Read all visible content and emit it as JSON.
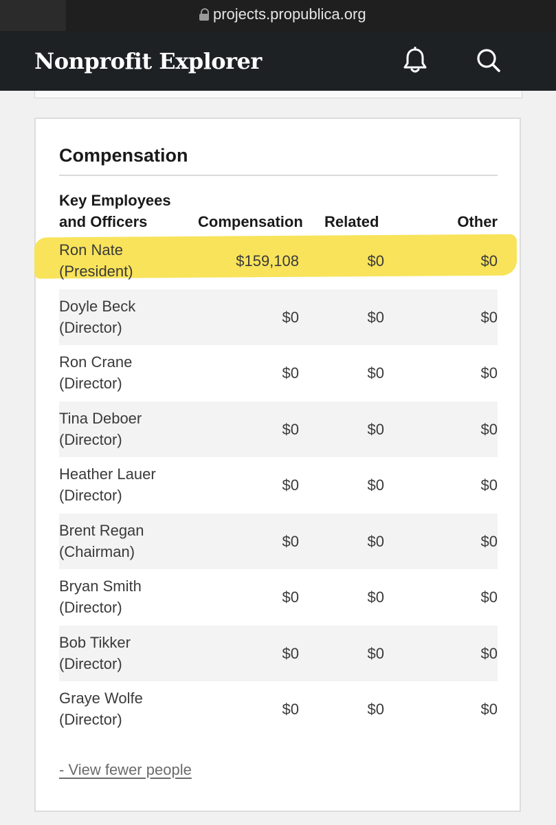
{
  "browser": {
    "url": "projects.propublica.org"
  },
  "header": {
    "title": "Nonprofit Explorer"
  },
  "compensation": {
    "title": "Compensation",
    "columns": {
      "name_line1": "Key Employees",
      "name_line2": "and Officers",
      "compensation": "Compensation",
      "related": "Related",
      "other": "Other"
    },
    "rows": [
      {
        "name": "Ron Nate",
        "role": "(President)",
        "compensation": "$159,108",
        "related": "$0",
        "other": "$0"
      },
      {
        "name": "Doyle Beck",
        "role": "(Director)",
        "compensation": "$0",
        "related": "$0",
        "other": "$0"
      },
      {
        "name": "Ron Crane",
        "role": "(Director)",
        "compensation": "$0",
        "related": "$0",
        "other": "$0"
      },
      {
        "name": "Tina Deboer",
        "role": "(Director)",
        "compensation": "$0",
        "related": "$0",
        "other": "$0"
      },
      {
        "name": "Heather Lauer",
        "role": "(Director)",
        "compensation": "$0",
        "related": "$0",
        "other": "$0"
      },
      {
        "name": "Brent Regan",
        "role": "(Chairman)",
        "compensation": "$0",
        "related": "$0",
        "other": "$0"
      },
      {
        "name": "Bryan Smith",
        "role": "(Director)",
        "compensation": "$0",
        "related": "$0",
        "other": "$0"
      },
      {
        "name": "Bob Tikker",
        "role": "(Director)",
        "compensation": "$0",
        "related": "$0",
        "other": "$0"
      },
      {
        "name": "Graye Wolfe",
        "role": "(Director)",
        "compensation": "$0",
        "related": "$0",
        "other": "$0"
      }
    ],
    "view_fewer_label": "- View fewer people"
  },
  "colors": {
    "header_bg": "#1e2124",
    "highlight": "#f8e35a",
    "row_shade": "#f3f3f3"
  }
}
